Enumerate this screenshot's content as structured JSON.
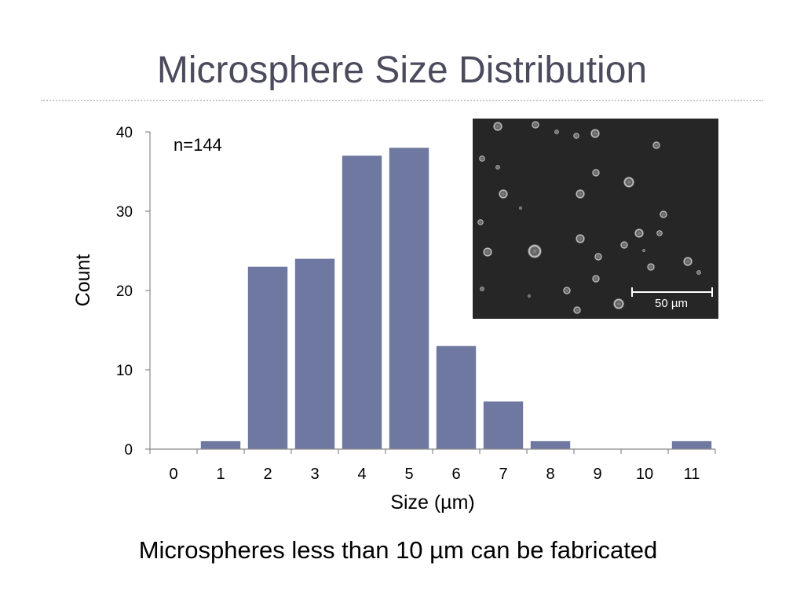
{
  "slide": {
    "title": "Microsphere Size Distribution",
    "caption": "Microspheres less than 10 µm can be fabricated"
  },
  "micrograph": {
    "scale_bar_label": "50 µm"
  },
  "colors": {
    "bar": "#6e78a0",
    "axis": "#8a8a8a",
    "title": "#4b4b5e",
    "micrograph_background": "#262626"
  },
  "chart_data": {
    "type": "bar",
    "title": "",
    "annotation": "n=144",
    "xlabel": "Size (µm)",
    "ylabel": "Count",
    "categories": [
      "0",
      "1",
      "2",
      "3",
      "4",
      "5",
      "6",
      "7",
      "8",
      "9",
      "10",
      "11"
    ],
    "values": [
      0,
      1,
      23,
      24,
      37,
      38,
      13,
      6,
      1,
      0,
      0,
      1
    ],
    "ylim": [
      0,
      40
    ],
    "yticks": [
      0,
      10,
      20,
      30,
      40
    ],
    "grid": false,
    "legend": "none"
  }
}
